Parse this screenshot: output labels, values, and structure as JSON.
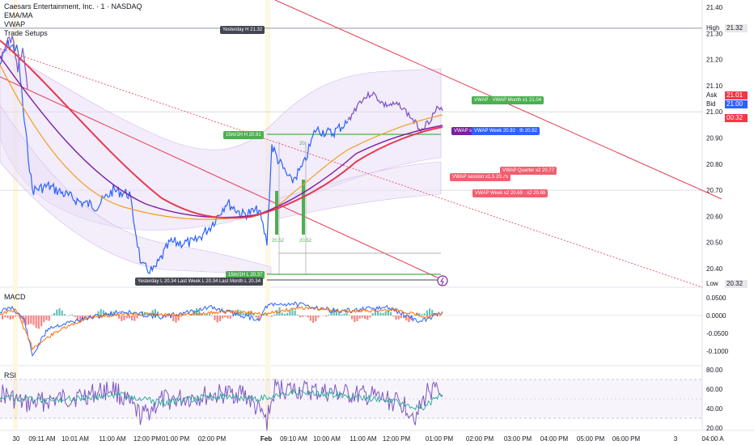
{
  "legend": {
    "title": "Caesars Entertainment, Inc. · 1 · NASDAQ",
    "indicators": [
      "EMA/MA",
      "VWAP",
      "Trade Setups"
    ]
  },
  "panes": {
    "macd_label": "MACD",
    "rsi_label": "RSI"
  },
  "price_axis": {
    "ticks": [
      "21.40",
      "21.30",
      "21.20",
      "21.10",
      "21.00",
      "20.90",
      "20.80",
      "20.70",
      "20.60",
      "20.50",
      "20.40"
    ],
    "high_label": "High",
    "high_value": "21.32",
    "low_label": "Low",
    "low_value": "20.32",
    "ask_label": "Ask",
    "ask_value": "21.01",
    "bid_label": "Bid",
    "bid_value": "21.00",
    "countdown": "00:32",
    "colors": {
      "ask": "#f23645",
      "bid": "#2962ff",
      "countdown": "#f23645"
    }
  },
  "macd_axis": {
    "ticks": [
      "0.0500",
      "0.0000",
      "-0.0500",
      "-0.1000"
    ]
  },
  "rsi_axis": {
    "ticks": [
      "80.00",
      "60.00",
      "40.00",
      "20.00"
    ]
  },
  "time_axis": {
    "ticks": [
      "30",
      "09:11 AM",
      "10:01 AM",
      "11:00 AM",
      "12:00 PM",
      "01:00 PM",
      "02:00 PM",
      "Feb",
      "09:10 AM",
      "10:00 AM",
      "11:00 AM",
      "12:00 PM",
      "01:00 PM",
      "02:00 PM",
      "03:00 PM",
      "04:00 PM",
      "05:00 PM",
      "06:00 PM",
      "3",
      "04:00 A"
    ]
  },
  "annotations": {
    "yesterday_high": "Yesterday H 21.32",
    "orb_high": "15m/1H H 20.91",
    "orb_low": "15m/1H L 20.37",
    "lows": "Yesterday L 20.34 Last Week L 20.34 Last Month L 20.34",
    "vwap_month": "VWAP · VWAP Month x1 21.04",
    "vwap_week": "VWAP Week 20.92 · th 20.92",
    "vwap_short": "VWAP se",
    "vwap_session": "VWAP session x1.5 20.75",
    "vwap_quarter": "VWAP Quarter x2 20.77",
    "vwap_week_x2": "VWAP Week x2 20.69 · x2 20.69",
    "bar_label_1": "20.52",
    "bar_label_2": "20.52",
    "bar_label_3": "20."
  },
  "colors": {
    "price": "#2962ff",
    "purple_price": "#7e57c2",
    "ema_red": "#e53950",
    "ema_orange": "#f0a020",
    "vwap_purple": "#7b1fa2",
    "band_fill": "#e9ddf5",
    "setup_green": "#4caf50",
    "trend_red": "#e53950"
  }
}
